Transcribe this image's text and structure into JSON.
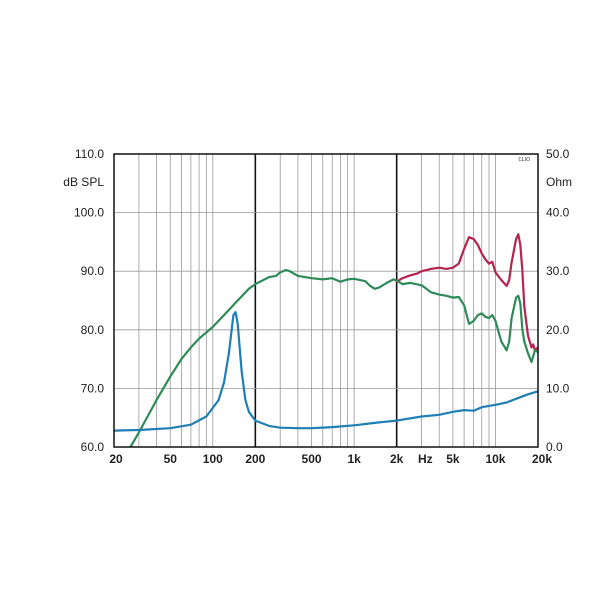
{
  "chart_data": {
    "type": "line",
    "title": "",
    "xlabel": "Hz",
    "ylabel_left": "dB SPL",
    "ylabel_right": "Ohm",
    "xscale": "log",
    "xlim": [
      20,
      20000
    ],
    "ylim_left": [
      60,
      110
    ],
    "ylim_right": [
      0,
      50
    ],
    "grid": true,
    "x_tick_labels": [
      {
        "value": 20,
        "label": "20"
      },
      {
        "value": 50,
        "label": "50"
      },
      {
        "value": 100,
        "label": "100"
      },
      {
        "value": 200,
        "label": "200"
      },
      {
        "value": 500,
        "label": "500"
      },
      {
        "value": 1000,
        "label": "1k"
      },
      {
        "value": 2000,
        "label": "2k"
      },
      {
        "value": 5000,
        "label": "5k"
      },
      {
        "value": 10000,
        "label": "10k"
      },
      {
        "value": 20000,
        "label": "20k"
      }
    ],
    "y_left_tick_labels": [
      {
        "value": 110,
        "label": "110.0"
      },
      {
        "value": 100,
        "label": "100.0"
      },
      {
        "value": 90,
        "label": "90.0"
      },
      {
        "value": 80,
        "label": "80.0"
      },
      {
        "value": 70,
        "label": "70.0"
      },
      {
        "value": 60,
        "label": "60.0"
      }
    ],
    "y_right_tick_labels": [
      {
        "value": 50,
        "label": "50.0"
      },
      {
        "value": 40,
        "label": "40.0"
      },
      {
        "value": 30,
        "label": "30.0"
      },
      {
        "value": 20,
        "label": "20.0"
      },
      {
        "value": 10,
        "label": "10.0"
      },
      {
        "value": 0,
        "label": "0.0"
      }
    ],
    "logo_text": "CLIO",
    "series": [
      {
        "axis": "left",
        "color": "#b5244d",
        "points": [
          [
            2000,
            88.2
          ],
          [
            2200,
            88.8
          ],
          [
            2500,
            89.3
          ],
          [
            2800,
            89.6
          ],
          [
            3000,
            90.0
          ],
          [
            3500,
            90.4
          ],
          [
            4000,
            90.6
          ],
          [
            4500,
            90.4
          ],
          [
            5000,
            90.6
          ],
          [
            5500,
            91.3
          ],
          [
            6000,
            93.8
          ],
          [
            6500,
            95.8
          ],
          [
            7000,
            95.5
          ],
          [
            7500,
            94.5
          ],
          [
            8000,
            93.0
          ],
          [
            8500,
            92.0
          ],
          [
            9000,
            91.3
          ],
          [
            9500,
            91.6
          ],
          [
            10000,
            89.8
          ],
          [
            11000,
            88.5
          ],
          [
            12000,
            87.5
          ],
          [
            12500,
            88.5
          ],
          [
            13000,
            91.5
          ],
          [
            14000,
            95.5
          ],
          [
            14500,
            96.3
          ],
          [
            15000,
            94.5
          ],
          [
            15500,
            90.0
          ],
          [
            16000,
            84.0
          ],
          [
            17000,
            79.0
          ],
          [
            18000,
            77.0
          ],
          [
            18500,
            77.5
          ],
          [
            19000,
            76.5
          ],
          [
            20000,
            77.0
          ]
        ]
      },
      {
        "axis": "left",
        "color": "#2e8b57",
        "points": [
          [
            20,
            57.0
          ],
          [
            25,
            59.2
          ],
          [
            30,
            62.5
          ],
          [
            40,
            68.0
          ],
          [
            50,
            72.0
          ],
          [
            60,
            75.0
          ],
          [
            70,
            77.0
          ],
          [
            80,
            78.5
          ],
          [
            100,
            80.5
          ],
          [
            120,
            82.5
          ],
          [
            150,
            85.0
          ],
          [
            180,
            87.0
          ],
          [
            200,
            87.8
          ],
          [
            250,
            89.0
          ],
          [
            280,
            89.2
          ],
          [
            300,
            89.8
          ],
          [
            330,
            90.2
          ],
          [
            350,
            90.0
          ],
          [
            400,
            89.2
          ],
          [
            500,
            88.8
          ],
          [
            600,
            88.6
          ],
          [
            700,
            88.8
          ],
          [
            800,
            88.2
          ],
          [
            900,
            88.6
          ],
          [
            1000,
            88.7
          ],
          [
            1200,
            88.3
          ],
          [
            1300,
            87.5
          ],
          [
            1400,
            87.0
          ],
          [
            1500,
            87.2
          ],
          [
            1700,
            88.0
          ],
          [
            1900,
            88.6
          ],
          [
            2000,
            88.4
          ],
          [
            2200,
            87.8
          ],
          [
            2500,
            88.0
          ],
          [
            3000,
            87.6
          ],
          [
            3500,
            86.4
          ],
          [
            4000,
            86.0
          ],
          [
            4500,
            85.8
          ],
          [
            5000,
            85.5
          ],
          [
            5500,
            85.6
          ],
          [
            6000,
            84.2
          ],
          [
            6500,
            81.0
          ],
          [
            7000,
            81.5
          ],
          [
            7500,
            82.5
          ],
          [
            8000,
            82.8
          ],
          [
            8500,
            82.2
          ],
          [
            9000,
            82.0
          ],
          [
            9500,
            82.5
          ],
          [
            10000,
            81.5
          ],
          [
            11000,
            78.0
          ],
          [
            12000,
            76.5
          ],
          [
            12500,
            78.0
          ],
          [
            13000,
            82.0
          ],
          [
            14000,
            85.5
          ],
          [
            14500,
            85.8
          ],
          [
            15000,
            84.5
          ],
          [
            15500,
            80.0
          ],
          [
            16000,
            78.0
          ],
          [
            17000,
            76.0
          ],
          [
            18000,
            74.5
          ],
          [
            18500,
            75.5
          ],
          [
            19000,
            76.5
          ],
          [
            20000,
            76.2
          ]
        ]
      },
      {
        "axis": "right",
        "color": "#1f7fb5",
        "points": [
          [
            20,
            2.8
          ],
          [
            30,
            2.9
          ],
          [
            50,
            3.2
          ],
          [
            70,
            3.8
          ],
          [
            90,
            5.2
          ],
          [
            110,
            8.0
          ],
          [
            120,
            11.0
          ],
          [
            130,
            16.0
          ],
          [
            140,
            22.5
          ],
          [
            145,
            23.0
          ],
          [
            150,
            21.0
          ],
          [
            160,
            13.0
          ],
          [
            170,
            8.0
          ],
          [
            180,
            6.0
          ],
          [
            200,
            4.5
          ],
          [
            250,
            3.6
          ],
          [
            300,
            3.3
          ],
          [
            400,
            3.2
          ],
          [
            500,
            3.2
          ],
          [
            700,
            3.4
          ],
          [
            1000,
            3.7
          ],
          [
            1500,
            4.2
          ],
          [
            2000,
            4.5
          ],
          [
            3000,
            5.2
          ],
          [
            4000,
            5.5
          ],
          [
            5000,
            6.0
          ],
          [
            6000,
            6.3
          ],
          [
            7000,
            6.2
          ],
          [
            8000,
            6.8
          ],
          [
            10000,
            7.2
          ],
          [
            12000,
            7.6
          ],
          [
            15000,
            8.5
          ],
          [
            17000,
            9.0
          ],
          [
            20000,
            9.5
          ]
        ]
      }
    ]
  }
}
